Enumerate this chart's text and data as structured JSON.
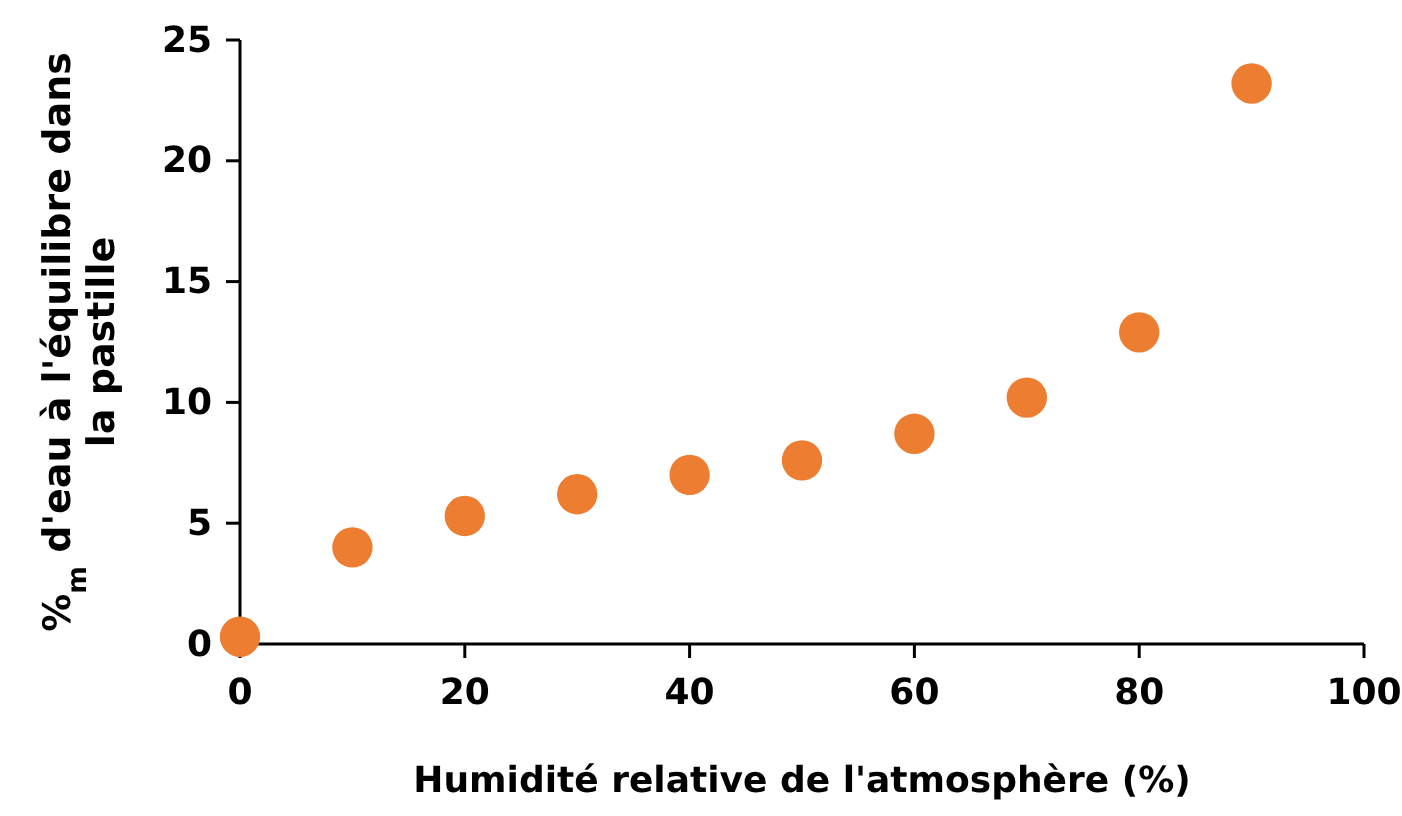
{
  "chart_data": {
    "type": "scatter",
    "xlabel": "Humidité relative de l'atmosphère (%)",
    "ylabel": "%$_{m}$ d'eau à l'équilibre dans la pastille",
    "x": [
      0,
      10,
      20,
      30,
      40,
      50,
      60,
      70,
      80,
      90
    ],
    "series": [
      {
        "color": "#ed7d31",
        "values": [
          0.3,
          4.0,
          5.3,
          6.2,
          7.0,
          7.6,
          8.7,
          10.2,
          12.9,
          23.2
        ]
      }
    ],
    "xlim": [
      0,
      100
    ],
    "xticks": [
      0,
      20,
      40,
      60,
      80,
      100
    ],
    "ylim": [
      0,
      25
    ],
    "yticks": [
      0,
      5,
      10,
      15,
      20,
      25
    ],
    "marker": "circle",
    "grid": false
  }
}
